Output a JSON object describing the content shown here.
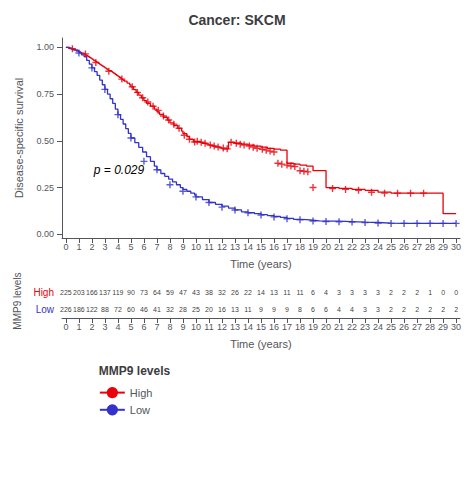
{
  "chart_data": {
    "type": "step",
    "title": "Cancer: SKCM",
    "xlabel": "Time (years)",
    "ylabel": "Disease-specific survival",
    "annotations": [
      {
        "text": "p = 0.029"
      }
    ],
    "legend": "lower left",
    "legend_title": "MMP9 levels",
    "grid": false,
    "xlim": [
      -0.3,
      30.3
    ],
    "xticks": [
      0,
      1,
      2,
      3,
      4,
      5,
      6,
      7,
      8,
      9,
      10,
      11,
      12,
      13,
      14,
      15,
      16,
      17,
      18,
      19,
      20,
      21,
      22,
      23,
      24,
      25,
      26,
      27,
      28,
      29,
      30
    ],
    "ylim": [
      -0.02,
      1.05
    ],
    "yticks": [
      {
        "value": 0.0,
        "label": "0.00"
      },
      {
        "value": 0.25,
        "label": "0.25"
      },
      {
        "value": 0.5,
        "label": "0.50"
      },
      {
        "value": 0.75,
        "label": "0.75"
      },
      {
        "value": 1.0,
        "label": "1.00"
      }
    ],
    "risk_table": {
      "xlabel": "Time (years)",
      "ylabel": "MMP9 levels",
      "xticks": [
        0,
        1,
        2,
        3,
        4,
        5,
        6,
        7,
        8,
        9,
        10,
        11,
        12,
        13,
        14,
        15,
        16,
        17,
        18,
        19,
        20,
        21,
        22,
        23,
        24,
        25,
        26,
        27,
        28,
        29,
        30
      ]
    },
    "series": [
      {
        "name": "High",
        "color": "#E8000A",
        "marker": "plus",
        "x": [
          0.0,
          0.3,
          0.5,
          0.7,
          0.9,
          1.0,
          1.1,
          1.2,
          1.4,
          1.5,
          1.6,
          1.7,
          1.8,
          1.9,
          2.0,
          2.1,
          2.2,
          2.3,
          2.4,
          2.5,
          2.6,
          2.7,
          2.8,
          2.9,
          3.0,
          3.1,
          3.2,
          3.3,
          3.5,
          3.6,
          3.7,
          3.8,
          3.9,
          4.0,
          4.1,
          4.2,
          4.3,
          4.4,
          4.5,
          4.7,
          4.9,
          5.0,
          5.2,
          5.4,
          5.6,
          5.8,
          6.0,
          6.2,
          6.5,
          6.8,
          7.0,
          7.2,
          7.5,
          7.8,
          8.0,
          8.3,
          8.6,
          8.9,
          9.0,
          9.3,
          9.5,
          9.8,
          10.0,
          10.3,
          10.5,
          10.8,
          11.0,
          11.3,
          11.5,
          11.8,
          12.0,
          12.5,
          13.0,
          13.5,
          14.0,
          14.5,
          15.0,
          15.5,
          16.0,
          16.5,
          17.0,
          17.5,
          18.0,
          18.5,
          19.0,
          20.0,
          21.0,
          22.0,
          23.0,
          24.0,
          25.0,
          26.0,
          27.0,
          28.0,
          29.0,
          30.0
        ],
        "values": [
          1.0,
          0.996,
          0.991,
          0.987,
          0.982,
          0.978,
          0.973,
          0.969,
          0.964,
          0.96,
          0.955,
          0.951,
          0.946,
          0.942,
          0.937,
          0.932,
          0.928,
          0.923,
          0.919,
          0.914,
          0.909,
          0.904,
          0.9,
          0.895,
          0.89,
          0.885,
          0.88,
          0.875,
          0.87,
          0.865,
          0.86,
          0.855,
          0.85,
          0.845,
          0.84,
          0.835,
          0.829,
          0.824,
          0.819,
          0.809,
          0.799,
          0.789,
          0.774,
          0.759,
          0.744,
          0.73,
          0.715,
          0.7,
          0.685,
          0.67,
          0.655,
          0.641,
          0.626,
          0.611,
          0.596,
          0.582,
          0.567,
          0.552,
          0.538,
          0.523,
          0.508,
          0.494,
          0.497,
          0.492,
          0.487,
          0.482,
          0.477,
          0.472,
          0.467,
          0.462,
          0.457,
          0.492,
          0.487,
          0.482,
          0.477,
          0.472,
          0.466,
          0.46,
          0.455,
          0.45,
          0.38,
          0.375,
          0.37,
          0.365,
          0.34,
          0.25,
          0.245,
          0.24,
          0.235,
          0.225,
          0.22,
          0.22,
          0.22,
          0.22,
          0.11,
          0.11
        ],
        "censor_x": [
          0.5,
          1.5,
          2.3,
          3.3,
          4.3,
          5.1,
          5.5,
          5.9,
          6.3,
          6.7,
          7.1,
          7.5,
          7.9,
          8.3,
          8.7,
          9.1,
          9.5,
          9.9,
          10.1,
          10.4,
          10.7,
          11.1,
          11.4,
          11.7,
          12.1,
          12.4,
          12.7,
          13.1,
          13.4,
          13.7,
          14.1,
          14.4,
          14.7,
          15.1,
          15.4,
          15.7,
          16.0,
          16.3,
          16.6,
          17.0,
          17.3,
          17.6,
          18.0,
          18.3,
          18.6,
          19.0,
          20.5,
          21.5,
          22.5,
          23.5,
          24.5,
          25.5,
          26.5,
          27.5
        ],
        "censor_y": [
          0.993,
          0.965,
          0.919,
          0.872,
          0.83,
          0.789,
          0.759,
          0.73,
          0.708,
          0.685,
          0.663,
          0.633,
          0.611,
          0.589,
          0.567,
          0.53,
          0.508,
          0.494,
          0.497,
          0.492,
          0.487,
          0.477,
          0.472,
          0.467,
          0.462,
          0.457,
          0.492,
          0.487,
          0.482,
          0.477,
          0.472,
          0.466,
          0.46,
          0.455,
          0.45,
          0.445,
          0.44,
          0.38,
          0.375,
          0.37,
          0.365,
          0.362,
          0.34,
          0.337,
          0.334,
          0.25,
          0.245,
          0.24,
          0.235,
          0.225,
          0.22,
          0.22,
          0.22,
          0.22
        ],
        "at_risk": [
          225,
          203,
          166,
          137,
          119,
          90,
          73,
          64,
          59,
          47,
          43,
          38,
          32,
          26,
          22,
          14,
          13,
          11,
          11,
          6,
          4,
          3,
          3,
          3,
          3,
          2,
          2,
          2,
          1,
          0,
          0
        ]
      },
      {
        "name": "Low",
        "color": "#3333CC",
        "marker": "plus",
        "x": [
          0.0,
          0.2,
          0.4,
          0.6,
          0.8,
          1.0,
          1.2,
          1.4,
          1.6,
          1.8,
          2.0,
          2.2,
          2.4,
          2.6,
          2.8,
          3.0,
          3.2,
          3.4,
          3.6,
          3.8,
          4.0,
          4.2,
          4.4,
          4.6,
          4.8,
          5.0,
          5.3,
          5.6,
          5.9,
          6.2,
          6.5,
          6.8,
          7.0,
          7.3,
          7.6,
          7.9,
          8.2,
          8.5,
          8.8,
          9.0,
          9.3,
          9.6,
          9.9,
          10.0,
          10.5,
          11.0,
          11.5,
          12.0,
          12.5,
          13.0,
          13.5,
          14.0,
          14.5,
          15.0,
          15.5,
          16.0,
          16.5,
          17.0,
          17.5,
          18.0,
          18.5,
          19.0,
          19.5,
          20.0,
          21.0,
          22.0,
          23.0,
          24.0,
          25.0,
          26.0,
          27.0,
          28.0,
          29.0,
          30.0
        ],
        "values": [
          1.0,
          0.995,
          0.99,
          0.985,
          0.98,
          0.97,
          0.96,
          0.95,
          0.93,
          0.91,
          0.89,
          0.87,
          0.85,
          0.825,
          0.8,
          0.775,
          0.75,
          0.725,
          0.7,
          0.67,
          0.64,
          0.615,
          0.59,
          0.565,
          0.54,
          0.515,
          0.49,
          0.465,
          0.44,
          0.415,
          0.39,
          0.365,
          0.345,
          0.325,
          0.31,
          0.295,
          0.28,
          0.265,
          0.25,
          0.24,
          0.23,
          0.22,
          0.21,
          0.2,
          0.185,
          0.17,
          0.16,
          0.15,
          0.14,
          0.13,
          0.12,
          0.115,
          0.11,
          0.105,
          0.1,
          0.095,
          0.09,
          0.085,
          0.08,
          0.078,
          0.075,
          0.072,
          0.07,
          0.07,
          0.068,
          0.065,
          0.063,
          0.06,
          0.058,
          0.058,
          0.058,
          0.058,
          0.058,
          0.058
        ],
        "censor_x": [
          1.0,
          2.0,
          3.0,
          4.0,
          5.0,
          6.0,
          7.0,
          8.0,
          9.0,
          10.0,
          11.0,
          12.0,
          13.0,
          14.0,
          15.0,
          16.0,
          17.0,
          18.0,
          19.0,
          20.0,
          21.0,
          22.0,
          23.0,
          24.0,
          25.0,
          26.0,
          27.0,
          28.0,
          29.0,
          30.0
        ],
        "censor_y": [
          0.97,
          0.89,
          0.775,
          0.64,
          0.515,
          0.39,
          0.345,
          0.265,
          0.23,
          0.2,
          0.17,
          0.145,
          0.13,
          0.115,
          0.103,
          0.093,
          0.083,
          0.077,
          0.071,
          0.068,
          0.067,
          0.065,
          0.063,
          0.06,
          0.058,
          0.058,
          0.058,
          0.058,
          0.058,
          0.058
        ],
        "at_risk": [
          226,
          186,
          122,
          88,
          72,
          60,
          46,
          41,
          32,
          28,
          25,
          20,
          16,
          13,
          11,
          9,
          9,
          9,
          8,
          6,
          6,
          4,
          4,
          3,
          3,
          2,
          2,
          2,
          2,
          2,
          2
        ]
      }
    ]
  }
}
